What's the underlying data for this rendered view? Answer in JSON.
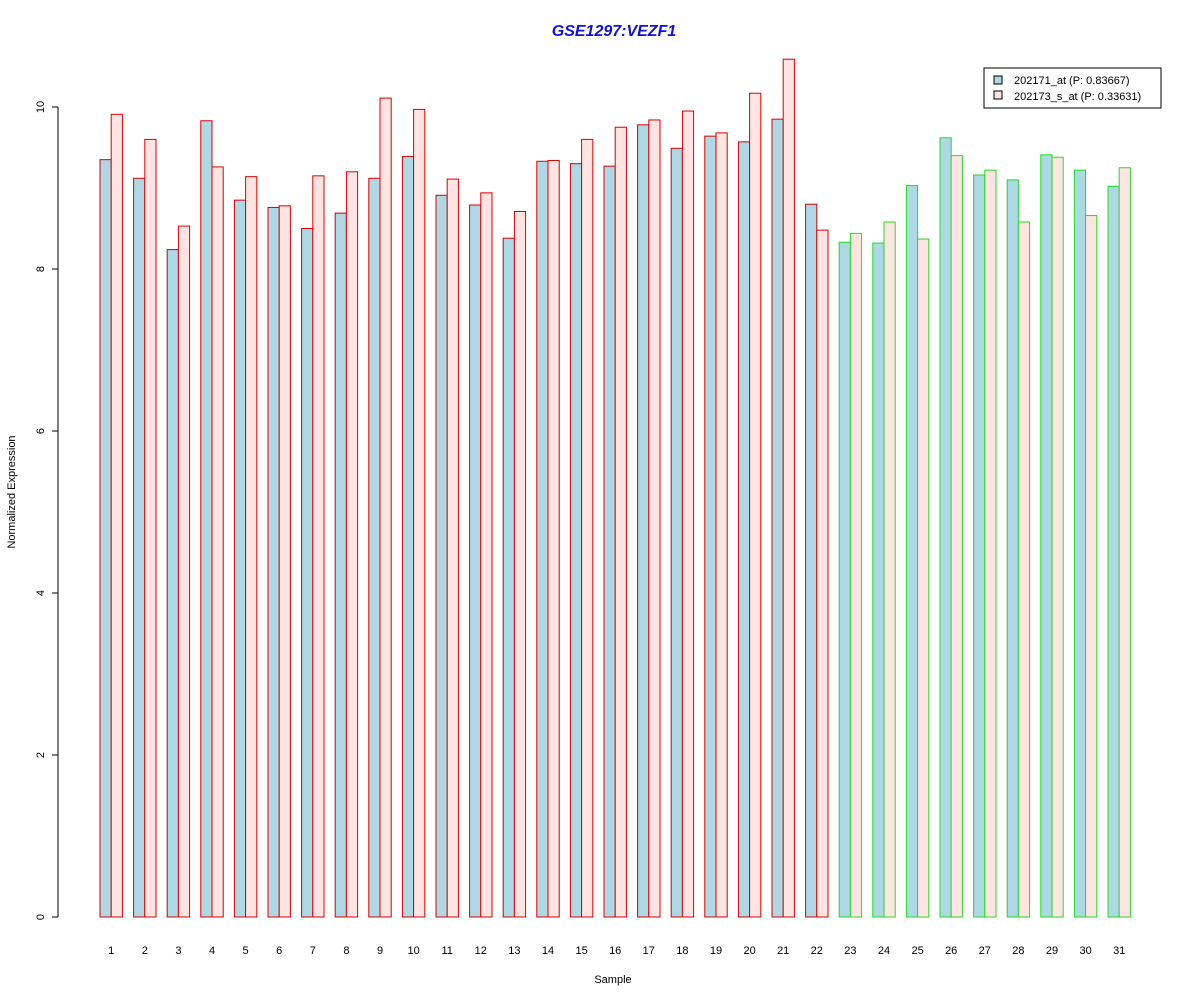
{
  "chart_data": {
    "type": "bar",
    "title": "GSE1297:VEZF1",
    "xlabel": "Sample",
    "ylabel": "Normalized Expression",
    "ylim": [
      0,
      10.6
    ],
    "yticks": [
      0,
      2,
      4,
      6,
      8,
      10
    ],
    "grid": false,
    "legend_position": "top-right",
    "categories": [
      "1",
      "2",
      "3",
      "4",
      "5",
      "6",
      "7",
      "8",
      "9",
      "10",
      "11",
      "12",
      "13",
      "14",
      "15",
      "16",
      "17",
      "18",
      "19",
      "20",
      "21",
      "22",
      "23",
      "24",
      "25",
      "26",
      "27",
      "28",
      "29",
      "30",
      "31"
    ],
    "series": [
      {
        "name": "202171_at (P: 0.83667)",
        "fill": "#add8e6",
        "values": [
          9.35,
          9.12,
          8.24,
          9.83,
          8.85,
          8.76,
          8.5,
          8.69,
          9.12,
          9.39,
          8.91,
          8.79,
          8.38,
          9.33,
          9.3,
          9.27,
          9.78,
          9.49,
          9.64,
          9.57,
          9.85,
          8.8,
          8.33,
          8.32,
          9.03,
          9.62,
          9.16,
          9.1,
          9.41,
          9.22,
          9.02
        ]
      },
      {
        "name": "202173_s_at (P: 0.33631)",
        "fill": "#ffe4e1",
        "values": [
          9.91,
          9.6,
          8.53,
          9.26,
          9.14,
          8.78,
          9.15,
          9.2,
          10.11,
          9.97,
          9.11,
          8.94,
          8.71,
          9.34,
          9.6,
          9.75,
          9.84,
          9.95,
          9.68,
          10.17,
          10.59,
          8.48,
          8.44,
          8.58,
          8.37,
          9.4,
          9.22,
          8.58,
          9.38,
          8.66,
          9.25
        ]
      }
    ],
    "group_border_colors": [
      "#dd0000",
      "#dd0000",
      "#dd0000",
      "#dd0000",
      "#dd0000",
      "#dd0000",
      "#dd0000",
      "#dd0000",
      "#dd0000",
      "#dd0000",
      "#dd0000",
      "#dd0000",
      "#dd0000",
      "#dd0000",
      "#dd0000",
      "#dd0000",
      "#dd0000",
      "#dd0000",
      "#dd0000",
      "#dd0000",
      "#dd0000",
      "#dd0000",
      "#22dd22",
      "#22dd22",
      "#22dd22",
      "#22dd22",
      "#22dd22",
      "#22dd22",
      "#22dd22",
      "#22dd22",
      "#22dd22"
    ],
    "legend_border_color": "#000000"
  }
}
